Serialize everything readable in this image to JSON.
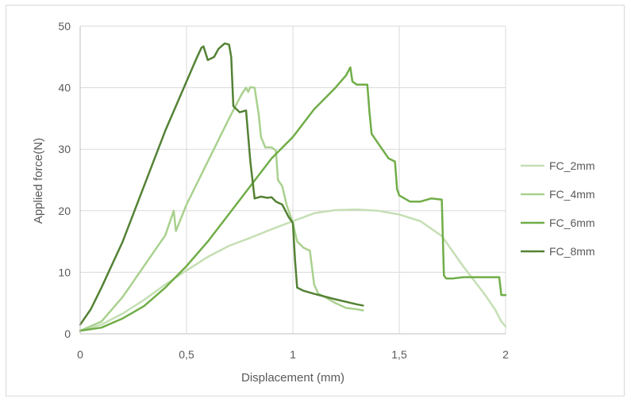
{
  "chart_data": {
    "type": "line",
    "title": "",
    "xlabel": "Displacement (mm)",
    "ylabel": "Applied force(N)",
    "xlim": [
      0,
      2
    ],
    "ylim": [
      0,
      50
    ],
    "x_ticks": [
      0,
      0.5,
      1,
      1.5,
      2
    ],
    "x_tick_labels": [
      "0",
      "0,5",
      "1",
      "1,5",
      "2"
    ],
    "y_ticks": [
      0,
      10,
      20,
      30,
      40,
      50
    ],
    "y_tick_labels": [
      "0",
      "10",
      "20",
      "30",
      "40",
      "50"
    ],
    "grid": {
      "horizontal": true,
      "vertical": true
    },
    "legend_position": "right",
    "series": [
      {
        "name": "FC_2mm",
        "color": "#c5dfb4",
        "x": [
          0,
          0.1,
          0.2,
          0.3,
          0.4,
          0.5,
          0.6,
          0.7,
          0.8,
          0.9,
          1.0,
          1.1,
          1.2,
          1.3,
          1.4,
          1.5,
          1.6,
          1.7,
          1.8,
          1.9,
          1.95,
          1.98,
          2.0
        ],
        "y": [
          0.5,
          1.5,
          3.3,
          5.5,
          8.0,
          10.3,
          12.5,
          14.3,
          15.6,
          17.0,
          18.3,
          19.6,
          20.1,
          20.2,
          20.0,
          19.4,
          18.3,
          15.9,
          11.0,
          6.5,
          4.0,
          2.0,
          1.2
        ]
      },
      {
        "name": "FC_4mm",
        "color": "#a9d18e",
        "x": [
          0,
          0.1,
          0.2,
          0.3,
          0.4,
          0.44,
          0.45,
          0.5,
          0.6,
          0.7,
          0.76,
          0.78,
          0.79,
          0.8,
          0.82,
          0.84,
          0.85,
          0.87,
          0.9,
          0.92,
          0.93,
          0.95,
          0.97,
          1.0,
          1.02,
          1.05,
          1.08,
          1.1,
          1.12,
          1.15,
          1.2,
          1.25,
          1.3,
          1.33
        ],
        "y": [
          0.5,
          2.0,
          6.0,
          11.0,
          16.0,
          20.0,
          16.7,
          21.0,
          28.0,
          35.0,
          39.0,
          40.0,
          39.3,
          40.1,
          40.0,
          35.5,
          32.0,
          30.3,
          30.3,
          29.8,
          25.0,
          24.0,
          21.0,
          18.0,
          15.0,
          14.0,
          13.5,
          8.0,
          6.5,
          6.0,
          5.0,
          4.2,
          4.0,
          3.8
        ]
      },
      {
        "name": "FC_6mm",
        "color": "#70ad47",
        "x": [
          0,
          0.1,
          0.2,
          0.3,
          0.4,
          0.5,
          0.6,
          0.7,
          0.8,
          0.9,
          1.0,
          1.1,
          1.2,
          1.25,
          1.27,
          1.28,
          1.3,
          1.35,
          1.36,
          1.37,
          1.4,
          1.45,
          1.48,
          1.49,
          1.5,
          1.55,
          1.6,
          1.65,
          1.7,
          1.71,
          1.72,
          1.75,
          1.8,
          1.9,
          1.97,
          1.98,
          2.0
        ],
        "y": [
          0.5,
          1.0,
          2.5,
          4.5,
          7.5,
          11.0,
          15.0,
          19.5,
          24.0,
          28.5,
          32.0,
          36.5,
          40.0,
          42.0,
          43.3,
          41.0,
          40.5,
          40.5,
          36.0,
          32.5,
          31.0,
          28.5,
          28.0,
          23.5,
          22.5,
          21.5,
          21.5,
          22.0,
          21.8,
          9.5,
          9.0,
          9.0,
          9.2,
          9.2,
          9.2,
          6.3,
          6.3
        ]
      },
      {
        "name": "FC_8mm",
        "color": "#548235",
        "x": [
          0,
          0.05,
          0.1,
          0.2,
          0.3,
          0.4,
          0.5,
          0.55,
          0.57,
          0.58,
          0.6,
          0.63,
          0.65,
          0.68,
          0.7,
          0.71,
          0.72,
          0.75,
          0.78,
          0.8,
          0.82,
          0.85,
          0.88,
          0.9,
          0.92,
          0.95,
          0.98,
          1.0,
          1.01,
          1.02,
          1.05,
          1.1,
          1.2,
          1.3,
          1.33
        ],
        "y": [
          1.5,
          4.0,
          7.5,
          15.0,
          24.0,
          33.0,
          41.0,
          45.0,
          46.5,
          46.7,
          44.5,
          45.0,
          46.3,
          47.2,
          47.0,
          45.0,
          37.0,
          36.0,
          36.3,
          28.0,
          22.0,
          22.3,
          22.1,
          22.2,
          21.5,
          21.0,
          19.0,
          18.0,
          12.0,
          7.5,
          7.0,
          6.5,
          5.6,
          4.8,
          4.6
        ]
      }
    ]
  }
}
